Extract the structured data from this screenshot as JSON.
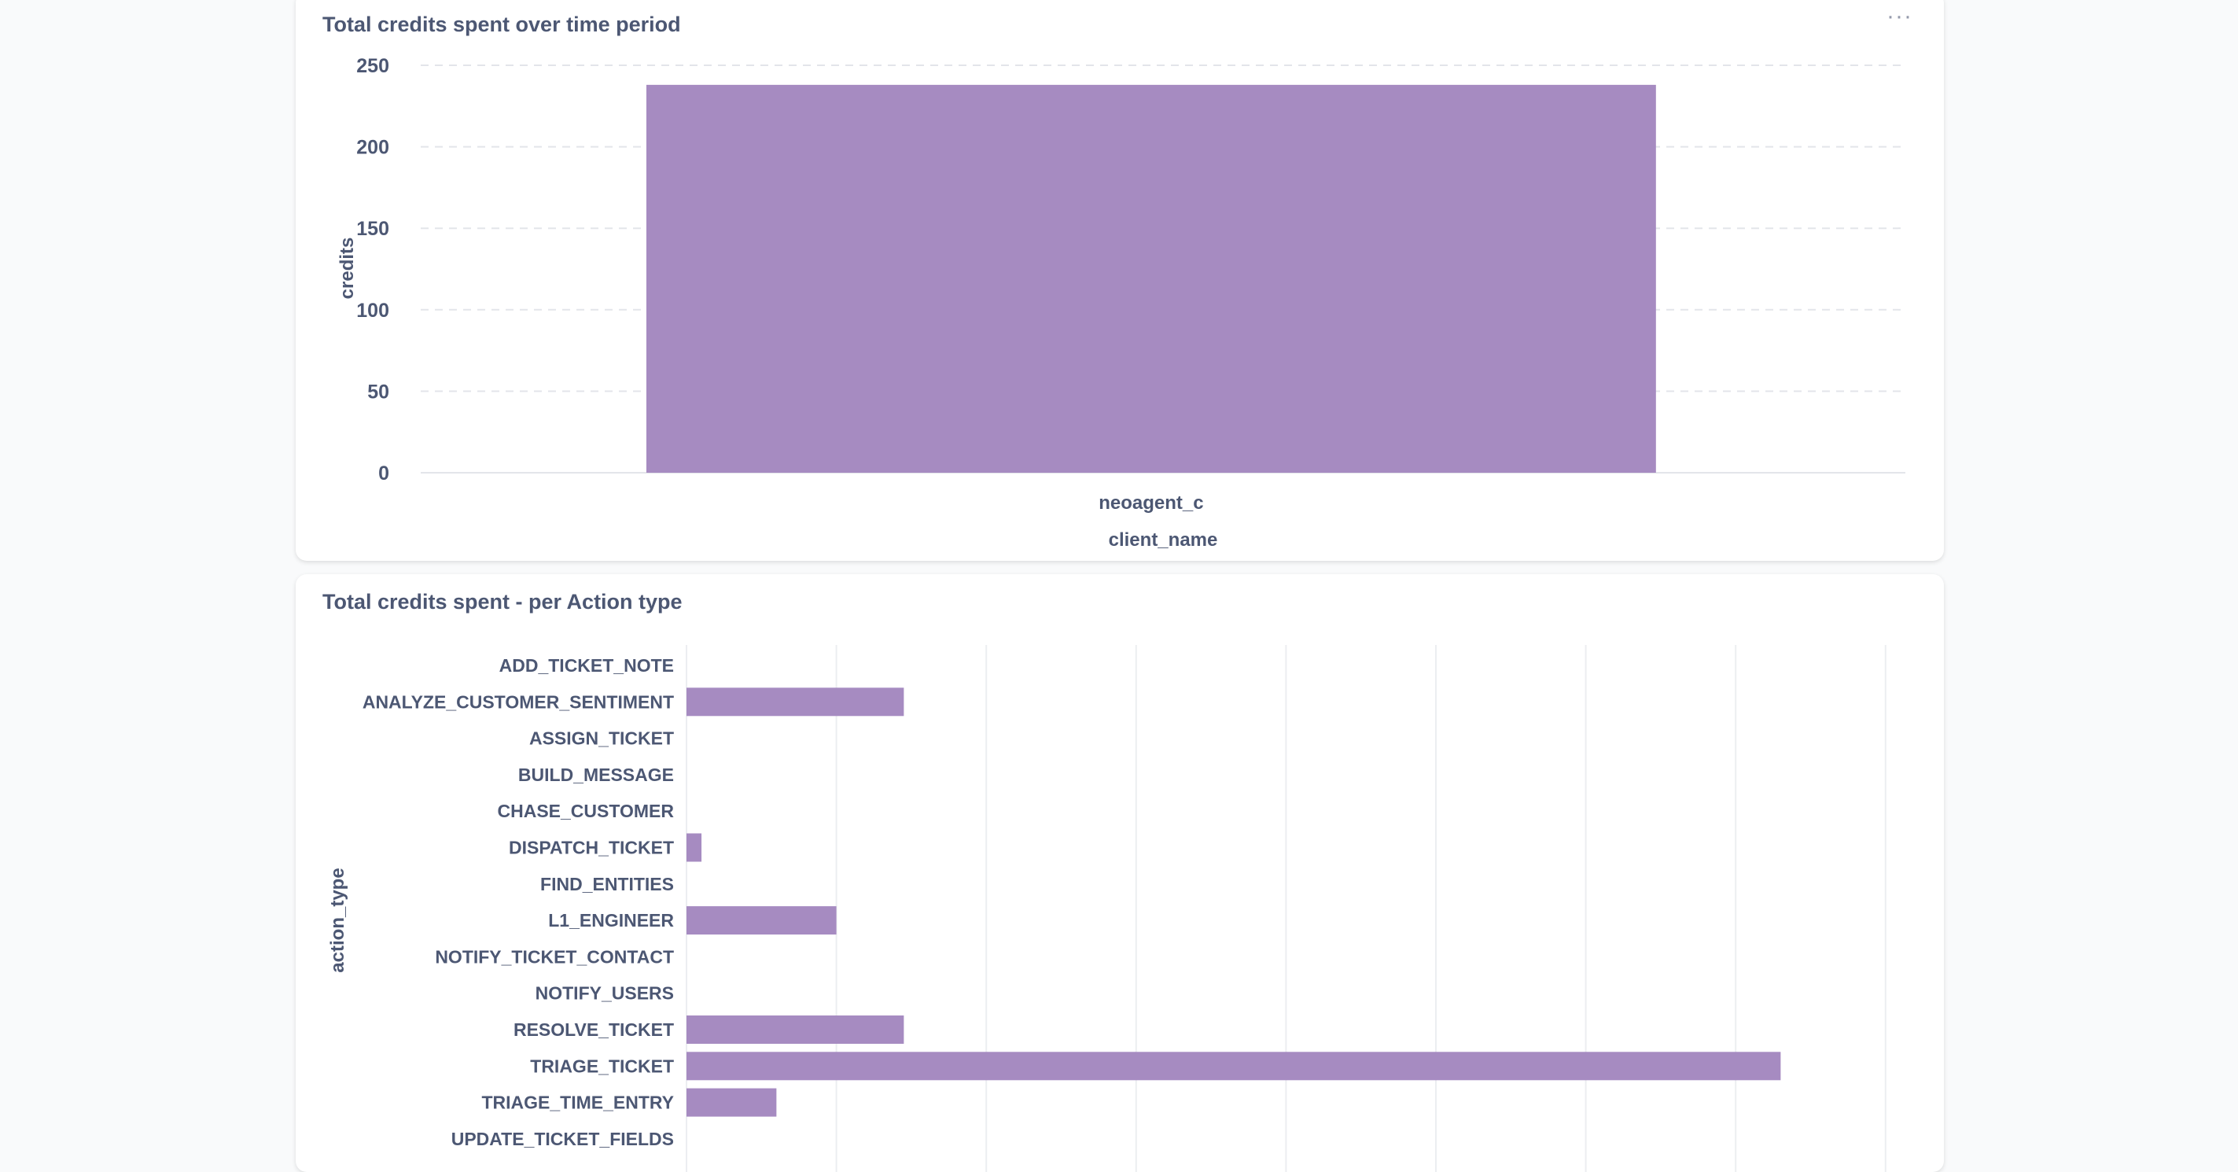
{
  "chart_data": [
    {
      "type": "bar",
      "title": "Total credits spent over time period",
      "xlabel": "client_name",
      "ylabel": "credits",
      "categories": [
        "neoagent_c"
      ],
      "values": [
        238
      ],
      "ylim": [
        0,
        250
      ],
      "yticks": [
        0,
        50,
        100,
        150,
        200,
        250
      ],
      "grid": true,
      "color": "#a68bc1",
      "menu_label": "···"
    },
    {
      "type": "bar",
      "orientation": "horizontal",
      "title": "Total credits spent - per Action type",
      "ylabel": "action_type",
      "xlabel": "",
      "categories": [
        "ADD_TICKET_NOTE",
        "ANALYZE_CUSTOMER_SENTIMENT",
        "ASSIGN_TICKET",
        "BUILD_MESSAGE",
        "CHASE_CUSTOMER",
        "DISPATCH_TICKET",
        "FIND_ENTITIES",
        "L1_ENGINEER",
        "NOTIFY_TICKET_CONTACT",
        "NOTIFY_USERS",
        "RESOLVE_TICKET",
        "TRIAGE_TICKET",
        "TRIAGE_TIME_ENTRY",
        "UPDATE_TICKET_FIELDS"
      ],
      "values": [
        0,
        29,
        0,
        0,
        0,
        2,
        0,
        20,
        0,
        0,
        29,
        146,
        12,
        0
      ],
      "xlim": [
        0,
        160
      ],
      "grid": true,
      "color": "#a68bc1"
    }
  ]
}
